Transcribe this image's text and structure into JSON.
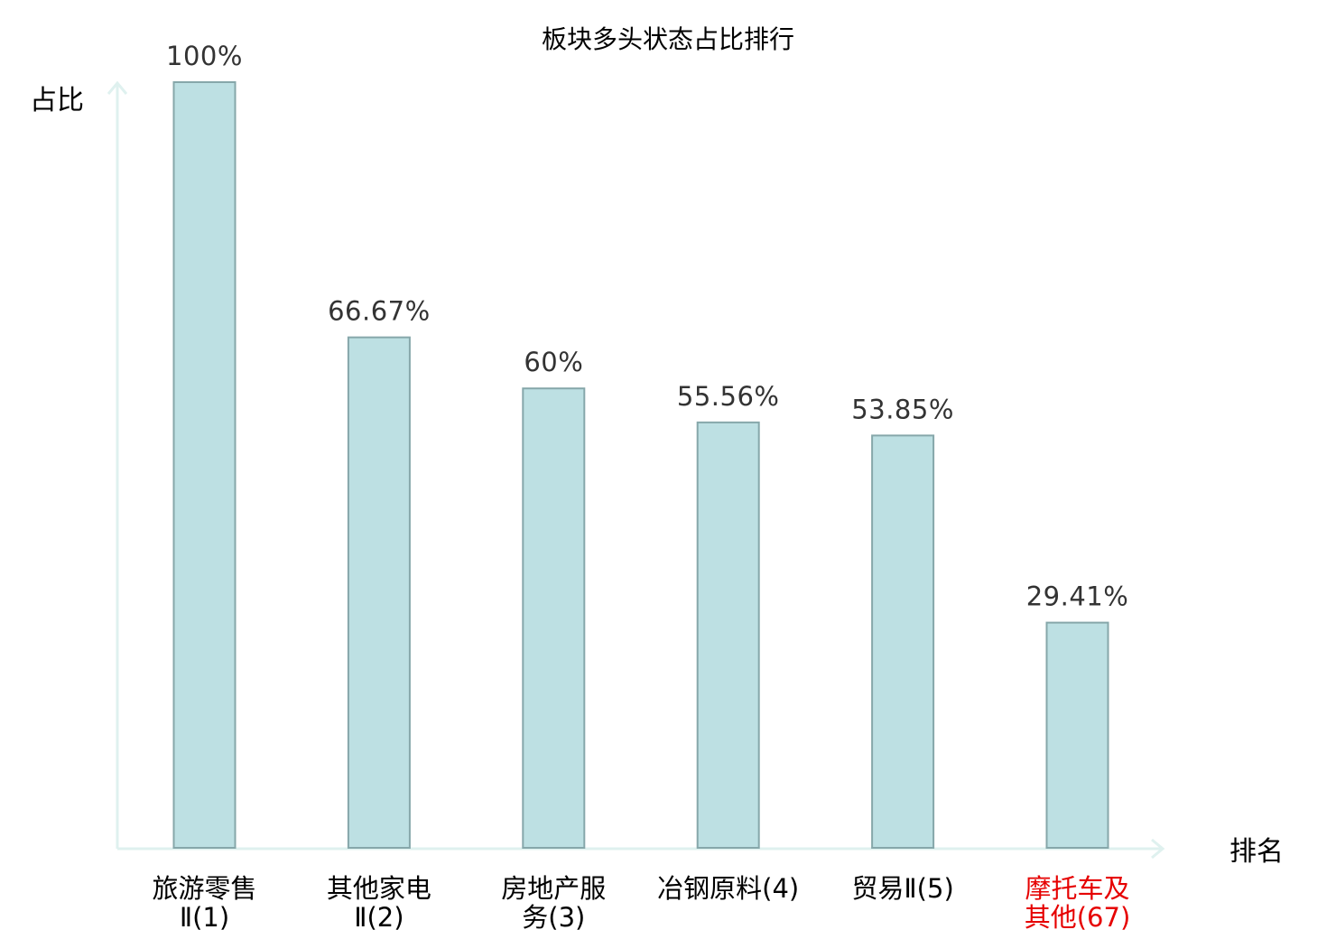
{
  "chart_data": {
    "type": "bar",
    "title": "板块多头状态占比排行",
    "ylabel": "占比",
    "xlabel": "排名",
    "ylim": [
      0,
      100
    ],
    "grid": false,
    "categories": [
      {
        "name_lines": [
          "旅游零售",
          "Ⅱ(1)"
        ],
        "highlight": false
      },
      {
        "name_lines": [
          "其他家电",
          "Ⅱ(2)"
        ],
        "highlight": false
      },
      {
        "name_lines": [
          "房地产服",
          "务(3)"
        ],
        "highlight": false
      },
      {
        "name_lines": [
          "冶钢原料(4)"
        ],
        "highlight": false
      },
      {
        "name_lines": [
          "贸易Ⅱ(5)"
        ],
        "highlight": false
      },
      {
        "name_lines": [
          "摩托车及",
          "其他(67)"
        ],
        "highlight": true
      }
    ],
    "values": [
      100,
      66.67,
      60,
      55.56,
      53.85,
      29.41
    ],
    "value_labels": [
      "100%",
      "66.67%",
      "60%",
      "55.56%",
      "53.85%",
      "29.41%"
    ]
  },
  "colors": {
    "bar_fill": "#bde0e3",
    "bar_stroke": "#86a7aa",
    "axis": "#dff1ef",
    "highlight_text": "#e60000",
    "normal_text": "#000000"
  }
}
